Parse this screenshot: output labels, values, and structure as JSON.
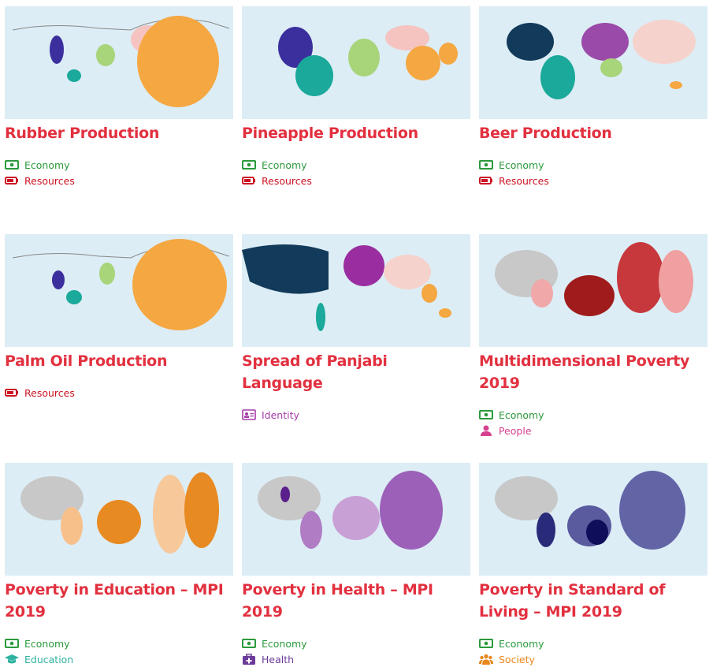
{
  "cards": [
    {
      "title": "Rubber Production",
      "tags": [
        "Economy",
        "Resources"
      ]
    },
    {
      "title": "Pineapple Production",
      "tags": [
        "Economy",
        "Resources"
      ]
    },
    {
      "title": "Beer Production",
      "tags": [
        "Economy",
        "Resources"
      ]
    },
    {
      "title": "Palm Oil Production",
      "tags": [
        "Resources"
      ]
    },
    {
      "title": "Spread of Panjabi Language",
      "tags": [
        "Identity"
      ]
    },
    {
      "title": "Multidimensional Poverty 2019",
      "tags": [
        "Economy",
        "People"
      ]
    },
    {
      "title": "Poverty in Education – MPI 2019",
      "tags": [
        "Economy",
        "Education"
      ]
    },
    {
      "title": "Poverty in Health – MPI 2019",
      "tags": [
        "Economy",
        "Health"
      ]
    },
    {
      "title": "Poverty in Standard of Living – MPI 2019",
      "tags": [
        "Economy",
        "Society"
      ]
    }
  ]
}
